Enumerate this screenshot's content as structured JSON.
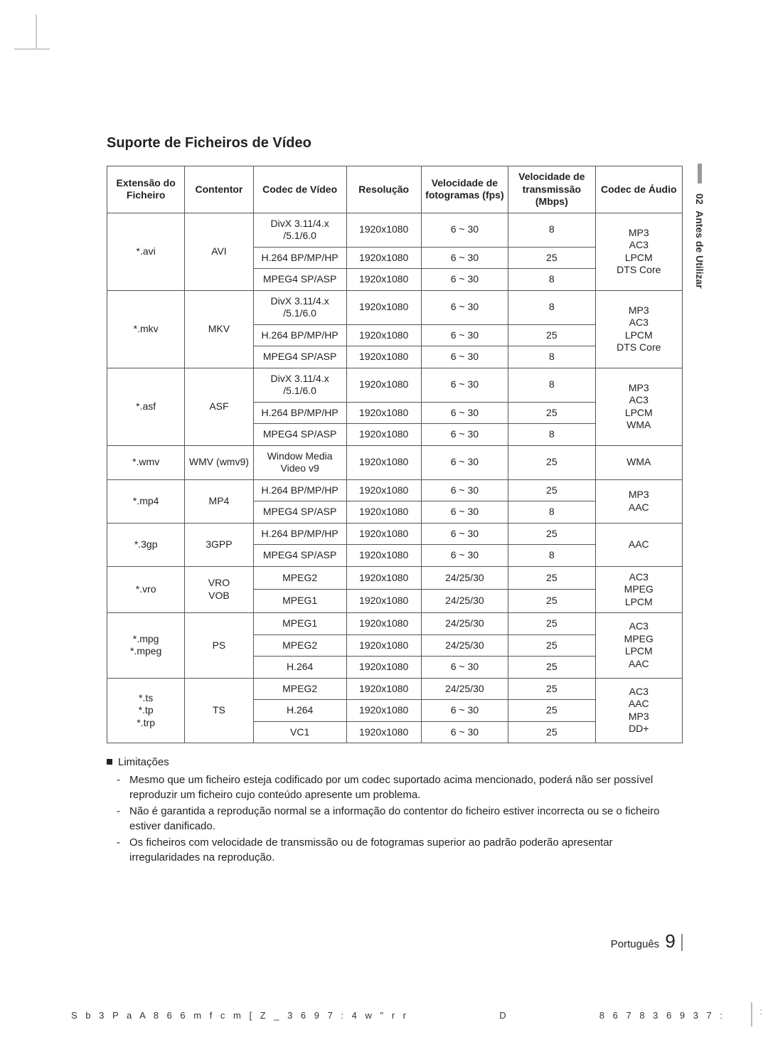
{
  "section_title": "Suporte de Ficheiros de Vídeo",
  "side_tab": {
    "number": "02",
    "label": "Antes de Utilizar"
  },
  "table": {
    "headers": [
      "Extensão do Ficheiro",
      "Contentor",
      "Codec de Vídeo",
      "Resolução",
      "Velocidade de fotogramas (fps)",
      "Velocidade de transmissão (Mbps)",
      "Codec de Áudio"
    ],
    "groups": [
      {
        "ext": "*.avi",
        "container": "AVI",
        "audio": "MP3\nAC3\nLPCM\nDTS Core",
        "rows": [
          {
            "vcodec": "DivX 3.11/4.x\n/5.1/6.0",
            "res": "1920x1080",
            "fps": "6 ~ 30",
            "mbps": "8"
          },
          {
            "vcodec": "H.264 BP/MP/HP",
            "res": "1920x1080",
            "fps": "6 ~ 30",
            "mbps": "25"
          },
          {
            "vcodec": "MPEG4 SP/ASP",
            "res": "1920x1080",
            "fps": "6 ~ 30",
            "mbps": "8"
          }
        ]
      },
      {
        "ext": "*.mkv",
        "container": "MKV",
        "audio": "MP3\nAC3\nLPCM\nDTS Core",
        "rows": [
          {
            "vcodec": "DivX 3.11/4.x\n/5.1/6.0",
            "res": "1920x1080",
            "fps": "6 ~ 30",
            "mbps": "8"
          },
          {
            "vcodec": "H.264 BP/MP/HP",
            "res": "1920x1080",
            "fps": "6 ~ 30",
            "mbps": "25"
          },
          {
            "vcodec": "MPEG4 SP/ASP",
            "res": "1920x1080",
            "fps": "6 ~ 30",
            "mbps": "8"
          }
        ]
      },
      {
        "ext": "*.asf",
        "container": "ASF",
        "audio": "MP3\nAC3\nLPCM\nWMA",
        "rows": [
          {
            "vcodec": "DivX 3.11/4.x\n/5.1/6.0",
            "res": "1920x1080",
            "fps": "6 ~ 30",
            "mbps": "8"
          },
          {
            "vcodec": "H.264 BP/MP/HP",
            "res": "1920x1080",
            "fps": "6 ~ 30",
            "mbps": "25"
          },
          {
            "vcodec": "MPEG4 SP/ASP",
            "res": "1920x1080",
            "fps": "6 ~ 30",
            "mbps": "8"
          }
        ]
      },
      {
        "ext": "*.wmv",
        "container": "WMV (wmv9)",
        "audio": "WMA",
        "rows": [
          {
            "vcodec": "Window Media\nVideo v9",
            "res": "1920x1080",
            "fps": "6 ~ 30",
            "mbps": "25"
          }
        ]
      },
      {
        "ext": "*.mp4",
        "container": "MP4",
        "audio": "MP3\nAAC",
        "rows": [
          {
            "vcodec": "H.264 BP/MP/HP",
            "res": "1920x1080",
            "fps": "6 ~ 30",
            "mbps": "25"
          },
          {
            "vcodec": "MPEG4 SP/ASP",
            "res": "1920x1080",
            "fps": "6 ~ 30",
            "mbps": "8"
          }
        ]
      },
      {
        "ext": "*.3gp",
        "container": "3GPP",
        "audio": "AAC",
        "rows": [
          {
            "vcodec": "H.264 BP/MP/HP",
            "res": "1920x1080",
            "fps": "6 ~ 30",
            "mbps": "25"
          },
          {
            "vcodec": "MPEG4 SP/ASP",
            "res": "1920x1080",
            "fps": "6 ~ 30",
            "mbps": "8"
          }
        ]
      },
      {
        "ext": "*.vro",
        "container": "VRO\nVOB",
        "audio": "AC3\nMPEG\nLPCM",
        "rows": [
          {
            "vcodec": "MPEG2",
            "res": "1920x1080",
            "fps": "24/25/30",
            "mbps": "25"
          },
          {
            "vcodec": "MPEG1",
            "res": "1920x1080",
            "fps": "24/25/30",
            "mbps": "25"
          }
        ]
      },
      {
        "ext": "*.mpg\n*.mpeg",
        "container": "PS",
        "audio": "AC3\nMPEG\nLPCM\nAAC",
        "rows": [
          {
            "vcodec": "MPEG1",
            "res": "1920x1080",
            "fps": "24/25/30",
            "mbps": "25"
          },
          {
            "vcodec": "MPEG2",
            "res": "1920x1080",
            "fps": "24/25/30",
            "mbps": "25"
          },
          {
            "vcodec": "H.264",
            "res": "1920x1080",
            "fps": "6 ~ 30",
            "mbps": "25"
          }
        ]
      },
      {
        "ext": "*.ts\n*.tp\n*.trp",
        "container": "TS",
        "audio": "AC3\nAAC\nMP3\nDD+",
        "rows": [
          {
            "vcodec": "MPEG2",
            "res": "1920x1080",
            "fps": "24/25/30",
            "mbps": "25"
          },
          {
            "vcodec": "H.264",
            "res": "1920x1080",
            "fps": "6 ~ 30",
            "mbps": "25"
          },
          {
            "vcodec": "VC1",
            "res": "1920x1080",
            "fps": "6 ~ 30",
            "mbps": "25"
          }
        ]
      }
    ]
  },
  "notes": {
    "heading": "Limitações",
    "items": [
      "Mesmo que um ficheiro esteja codificado por um codec suportado acima mencionado, poderá não ser possível reproduzir um ficheiro cujo conteúdo apresente um problema.",
      "Não é garantida a reprodução normal se a informação do contentor do ficheiro estiver incorrecta ou se o ficheiro estiver danificado.",
      "Os ficheiros com velocidade de transmissão ou de fotogramas superior ao padrão poderão apresentar irregularidades na reprodução."
    ]
  },
  "footer": {
    "lang": "Português",
    "page": "9",
    "left_code": "S b 3 P a A 8 6 6 m f c m [ Z _ 3 6 9 7 : 4 w \" r r",
    "mid_code": "D",
    "right_code": "8 6 7 8 3 6 9 3 7 :"
  }
}
